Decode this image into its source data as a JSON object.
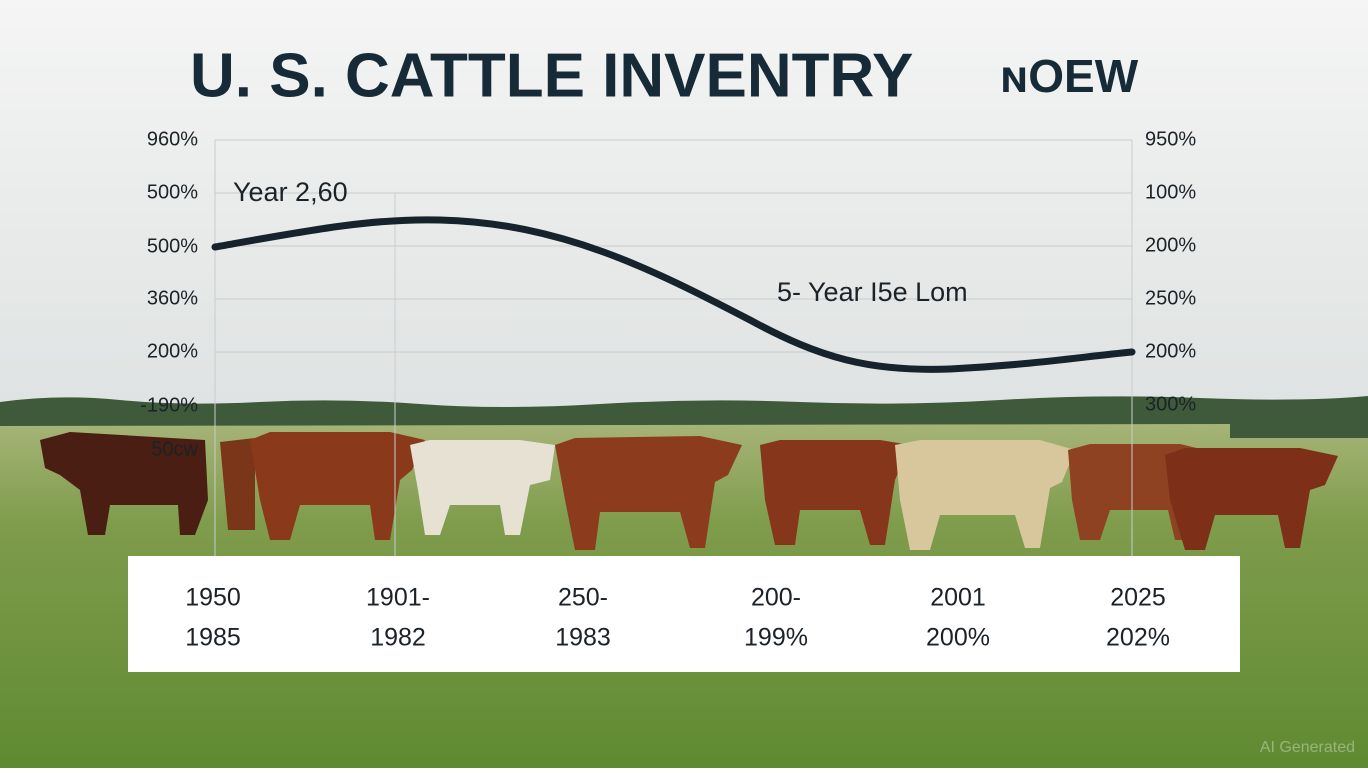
{
  "title": {
    "main": "U. S. CATTLE INVENTRY",
    "suffix": "ɴOEW"
  },
  "left_axis": [
    "960%",
    "500%",
    "500%",
    "360%",
    "200%",
    "-190%",
    "50cw"
  ],
  "right_axis": [
    "950%",
    "100%",
    "200%",
    "250%",
    "200%",
    "300%"
  ],
  "annotations": [
    "Year 2,60",
    "5- Year I5e Lom"
  ],
  "x_labels": [
    [
      "1950",
      "1985"
    ],
    [
      "1901-",
      "1982"
    ],
    [
      "250-",
      "1983"
    ],
    [
      "200-",
      "199%"
    ],
    [
      "2001",
      "200%"
    ],
    [
      "2025",
      "202%"
    ]
  ],
  "watermark": "AI Generated"
}
